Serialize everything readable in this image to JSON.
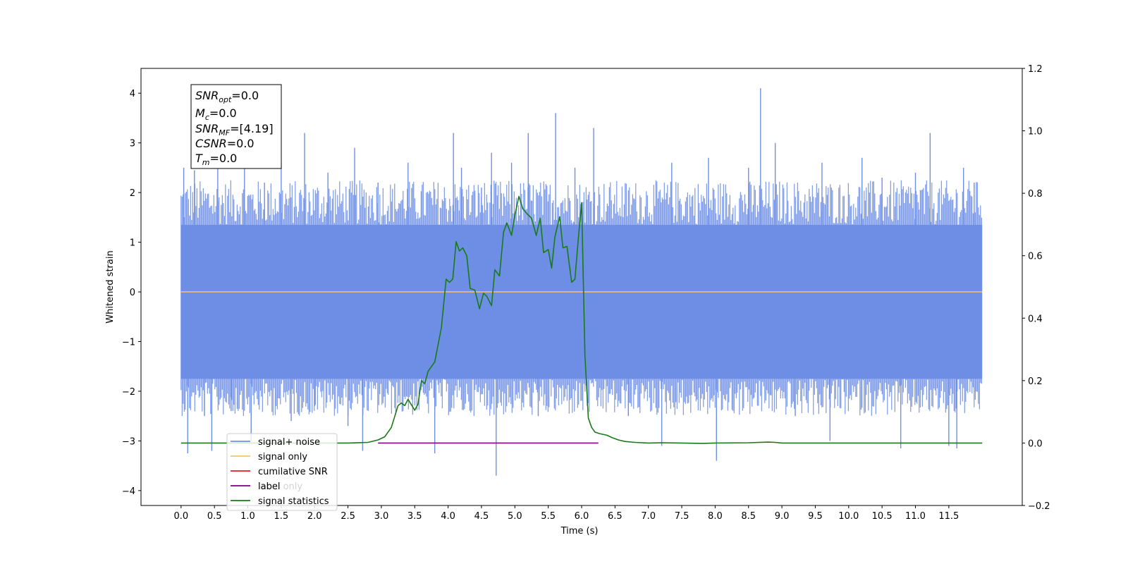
{
  "chart_data": {
    "type": "line",
    "xlabel": "Time (s)",
    "ylabel": "Whitened strain",
    "xlim": [
      -0.6,
      12.6
    ],
    "ylim": [
      -4.3,
      4.5
    ],
    "ylim_right": [
      -0.2,
      1.2
    ],
    "x_ticks": [
      0.0,
      0.5,
      1.0,
      1.5,
      2.0,
      2.5,
      3.0,
      3.5,
      4.0,
      4.5,
      5.0,
      5.5,
      6.0,
      6.5,
      7.0,
      7.5,
      8.0,
      8.5,
      9.0,
      9.5,
      10.0,
      10.5,
      11.0,
      11.5
    ],
    "x_tick_labels": [
      "0.0",
      "0.5",
      "1.0",
      "1.5",
      "2.0",
      "2.5",
      "3.0",
      "3.5",
      "4.0",
      "4.5",
      "5.0",
      "5.5",
      "6.0",
      "6.5",
      "7.0",
      "7.5",
      "8.0",
      "8.5",
      "9.0",
      "9.5",
      "10.0",
      "10.5",
      "11.0",
      "11.5"
    ],
    "y_ticks": [
      -4,
      -3,
      -2,
      -1,
      0,
      1,
      2,
      3,
      4
    ],
    "y_tick_labels": [
      "−4",
      "−3",
      "−2",
      "−1",
      "0",
      "1",
      "2",
      "3",
      "4"
    ],
    "y_right_ticks": [
      -0.2,
      0.0,
      0.2,
      0.4,
      0.6,
      0.8,
      1.0,
      1.2
    ],
    "y_right_tick_labels": [
      "−0.2",
      "0.0",
      "0.2",
      "0.4",
      "0.6",
      "0.8",
      "1.0",
      "1.2"
    ],
    "grid": false,
    "legend_position": "lower-left",
    "legend": [
      {
        "label": "signal+ noise",
        "color": "#6f8fe6"
      },
      {
        "label": "signal only",
        "color": "#f5c46b"
      },
      {
        "label": "cumilative SNR",
        "color": "#e41a1c"
      },
      {
        "label": "label",
        "color": "#800080"
      },
      {
        "label": "signal statistics",
        "color": "#1a7a1a"
      }
    ],
    "hidden_legend_text": [
      "label only"
    ],
    "info_box": [
      {
        "base": "SNR",
        "sub": "opt",
        "value": "=0.0"
      },
      {
        "base": "M",
        "sub": "c",
        "value": "=0.0"
      },
      {
        "base": "SNR",
        "sub": "MF",
        "value": "=[4.19]"
      },
      {
        "base": "CSNR",
        "sub": "",
        "value": "=0.0"
      },
      {
        "base": "T",
        "sub": "m",
        "value": "=0.0"
      }
    ],
    "series": [
      {
        "name": "signal+ noise",
        "axis": "left",
        "color": "#6f8fe6",
        "x_range": [
          0.0,
          12.0
        ],
        "band_min": -1.75,
        "band_max": 1.35,
        "spikes": [
          {
            "x": 0.04,
            "y": 2.5
          },
          {
            "x": 0.1,
            "y": -3.25
          },
          {
            "x": 0.2,
            "y": 2.45
          },
          {
            "x": 0.35,
            "y": -2.5
          },
          {
            "x": 0.46,
            "y": -3.2
          },
          {
            "x": 0.55,
            "y": 2.6
          },
          {
            "x": 0.75,
            "y": -2.4
          },
          {
            "x": 0.95,
            "y": 2.7
          },
          {
            "x": 1.05,
            "y": -3.0
          },
          {
            "x": 1.25,
            "y": 2.2
          },
          {
            "x": 1.5,
            "y": 2.6
          },
          {
            "x": 1.65,
            "y": -2.6
          },
          {
            "x": 1.85,
            "y": 3.2
          },
          {
            "x": 2.0,
            "y": -2.3
          },
          {
            "x": 2.2,
            "y": 2.4
          },
          {
            "x": 2.5,
            "y": -2.7
          },
          {
            "x": 2.6,
            "y": 2.9
          },
          {
            "x": 2.72,
            "y": -3.2
          },
          {
            "x": 2.95,
            "y": 2.2
          },
          {
            "x": 3.4,
            "y": 2.6
          },
          {
            "x": 3.8,
            "y": -3.25
          },
          {
            "x": 4.08,
            "y": 3.2
          },
          {
            "x": 4.2,
            "y": 2.5
          },
          {
            "x": 4.5,
            "y": 2.1
          },
          {
            "x": 4.65,
            "y": 2.8
          },
          {
            "x": 4.72,
            "y": -3.7
          },
          {
            "x": 4.95,
            "y": 2.6
          },
          {
            "x": 5.2,
            "y": 3.2
          },
          {
            "x": 5.35,
            "y": -2.5
          },
          {
            "x": 5.61,
            "y": 3.6
          },
          {
            "x": 5.9,
            "y": 2.5
          },
          {
            "x": 6.18,
            "y": 3.3
          },
          {
            "x": 6.7,
            "y": -2.5
          },
          {
            "x": 7.2,
            "y": -3.1
          },
          {
            "x": 7.35,
            "y": 2.6
          },
          {
            "x": 7.9,
            "y": 2.7
          },
          {
            "x": 8.02,
            "y": -3.4
          },
          {
            "x": 8.5,
            "y": 2.5
          },
          {
            "x": 8.68,
            "y": 4.1
          },
          {
            "x": 8.9,
            "y": 3.0
          },
          {
            "x": 9.2,
            "y": -2.5
          },
          {
            "x": 9.6,
            "y": 2.6
          },
          {
            "x": 9.72,
            "y": -3.0
          },
          {
            "x": 10.2,
            "y": 2.7
          },
          {
            "x": 10.5,
            "y": 2.3
          },
          {
            "x": 10.78,
            "y": -3.15
          },
          {
            "x": 11.0,
            "y": 2.4
          },
          {
            "x": 11.22,
            "y": 3.2
          },
          {
            "x": 11.5,
            "y": -3.1
          },
          {
            "x": 11.62,
            "y": -3.15
          },
          {
            "x": 11.72,
            "y": 2.5
          },
          {
            "x": 11.88,
            "y": 2.2
          }
        ]
      },
      {
        "name": "signal only",
        "axis": "left",
        "color": "#f5c46b",
        "x": [
          0.0,
          12.0
        ],
        "y": [
          0.0,
          0.0
        ]
      },
      {
        "name": "label",
        "axis": "right",
        "color": "#800080",
        "x": [
          2.95,
          6.25
        ],
        "y": [
          0.0,
          0.0
        ]
      },
      {
        "name": "signal statistics",
        "axis": "right",
        "color": "#1a7a1a",
        "x": [
          0.0,
          2.5,
          2.8,
          2.95,
          3.05,
          3.15,
          3.25,
          3.3,
          3.35,
          3.4,
          3.5,
          3.55,
          3.6,
          3.65,
          3.7,
          3.8,
          3.9,
          3.97,
          4.02,
          4.07,
          4.12,
          4.17,
          4.22,
          4.28,
          4.33,
          4.4,
          4.47,
          4.53,
          4.58,
          4.65,
          4.7,
          4.77,
          4.83,
          4.88,
          4.95,
          5.0,
          5.06,
          5.12,
          5.18,
          5.25,
          5.32,
          5.38,
          5.43,
          5.5,
          5.55,
          5.6,
          5.67,
          5.72,
          5.78,
          5.85,
          5.9,
          5.95,
          6.0,
          6.05,
          6.1,
          6.15,
          6.2,
          6.27,
          6.38,
          6.45,
          6.55,
          6.65,
          6.8,
          7.0,
          7.2,
          7.5,
          7.8,
          8.0,
          8.5,
          8.8,
          8.9,
          9.0,
          9.1,
          9.3,
          12.0
        ],
        "y": [
          0.0,
          0.0,
          0.002,
          0.01,
          0.02,
          0.05,
          0.12,
          0.128,
          0.12,
          0.14,
          0.105,
          0.125,
          0.2,
          0.19,
          0.23,
          0.26,
          0.37,
          0.525,
          0.515,
          0.525,
          0.645,
          0.615,
          0.625,
          0.6,
          0.495,
          0.49,
          0.43,
          0.48,
          0.47,
          0.44,
          0.555,
          0.535,
          0.675,
          0.705,
          0.665,
          0.73,
          0.79,
          0.75,
          0.735,
          0.72,
          0.665,
          0.72,
          0.61,
          0.62,
          0.56,
          0.66,
          0.725,
          0.625,
          0.63,
          0.515,
          0.525,
          0.655,
          0.77,
          0.28,
          0.08,
          0.05,
          0.035,
          0.03,
          0.025,
          0.018,
          0.01,
          0.005,
          0.002,
          0.0,
          0.001,
          0.0,
          -0.001,
          0.0,
          0.001,
          0.003,
          0.002,
          0.0,
          0.0,
          0.0,
          0.0
        ]
      }
    ]
  }
}
